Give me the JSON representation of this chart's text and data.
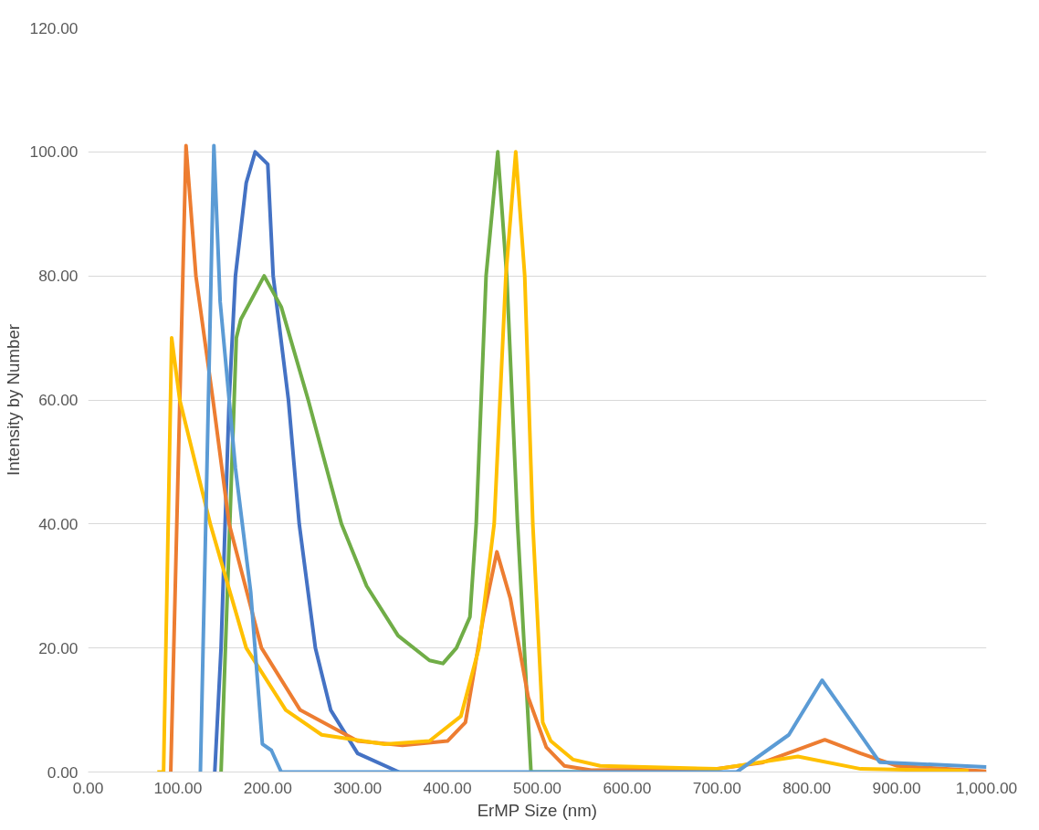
{
  "chart_data": {
    "type": "line",
    "xlabel": "ErMP Size (nm)",
    "ylabel": "Intensity by Number",
    "xlim": [
      0,
      1000
    ],
    "ylim": [
      0,
      120
    ],
    "xticks": [
      {
        "value": 0,
        "label": "0.00"
      },
      {
        "value": 100,
        "label": "100.00"
      },
      {
        "value": 200,
        "label": "200.00"
      },
      {
        "value": 300,
        "label": "300.00"
      },
      {
        "value": 400,
        "label": "400.00"
      },
      {
        "value": 500,
        "label": "500.00"
      },
      {
        "value": 600,
        "label": "600.00"
      },
      {
        "value": 700,
        "label": "700.00"
      },
      {
        "value": 800,
        "label": "800.00"
      },
      {
        "value": 900,
        "label": "900.00"
      },
      {
        "value": 1000,
        "label": "1,000.00"
      }
    ],
    "yticks": [
      {
        "value": 0,
        "label": "0.00"
      },
      {
        "value": 20,
        "label": "20.00"
      },
      {
        "value": 40,
        "label": "40.00"
      },
      {
        "value": 60,
        "label": "60.00"
      },
      {
        "value": 80,
        "label": "80.00"
      },
      {
        "value": 100,
        "label": "100.00"
      },
      {
        "value": 120,
        "label": "120.00"
      }
    ],
    "grid": "y",
    "marker": "none",
    "line_style": "solid",
    "series": [
      {
        "color": "#4472c4",
        "x": [
          141,
          148,
          157,
          164,
          176,
          186,
          200,
          206,
          223,
          235,
          253,
          270,
          300,
          346
        ],
        "values": [
          0,
          20,
          60,
          80,
          95,
          100,
          98,
          80,
          60,
          40,
          20,
          10,
          3,
          0
        ]
      },
      {
        "color": "#70ad47",
        "x": [
          148,
          165,
          170,
          196,
          215,
          245,
          282,
          310,
          345,
          380,
          395,
          410,
          425,
          432,
          443,
          456,
          466,
          478,
          493,
          560
        ],
        "values": [
          0,
          70,
          73,
          80,
          75,
          60,
          40,
          30,
          22,
          18,
          17.5,
          20,
          25,
          40,
          80,
          100,
          80,
          40,
          0,
          0
        ]
      },
      {
        "color": "#ed7d31",
        "x": [
          92,
          109,
          120,
          139,
          157,
          193,
          236,
          300,
          350,
          400,
          420,
          440,
          455,
          470,
          490,
          510,
          530,
          560,
          700,
          750,
          820,
          860,
          900,
          1000
        ],
        "values": [
          0,
          101,
          80,
          60,
          40,
          20,
          10,
          5,
          4.3,
          5,
          8,
          25,
          35.5,
          28,
          12,
          4,
          1,
          0.3,
          0.5,
          1.5,
          5.2,
          3,
          1,
          0.1
        ]
      },
      {
        "color": "#ffc000",
        "x": [
          77,
          84,
          93,
          102,
          136,
          176,
          220,
          260,
          330,
          380,
          415,
          435,
          452,
          465,
          476,
          486,
          495,
          506,
          515,
          540,
          570,
          700,
          790,
          860,
          980
        ],
        "values": [
          0,
          0,
          70,
          60,
          40,
          20,
          10,
          6,
          4.5,
          5,
          9,
          20,
          40,
          80,
          100,
          80,
          40,
          8,
          5,
          2,
          1,
          0.5,
          2.5,
          0.5,
          0.2
        ]
      },
      {
        "color": "#5b9bd5",
        "x": [
          125,
          140,
          147,
          164,
          181,
          194,
          204,
          215,
          400,
          722,
          780,
          817,
          850,
          881,
          1000
        ],
        "values": [
          0,
          101,
          75.8,
          49,
          29,
          4.5,
          3.5,
          0,
          0,
          0,
          6,
          14.8,
          8,
          1.6,
          0.8
        ]
      }
    ]
  }
}
